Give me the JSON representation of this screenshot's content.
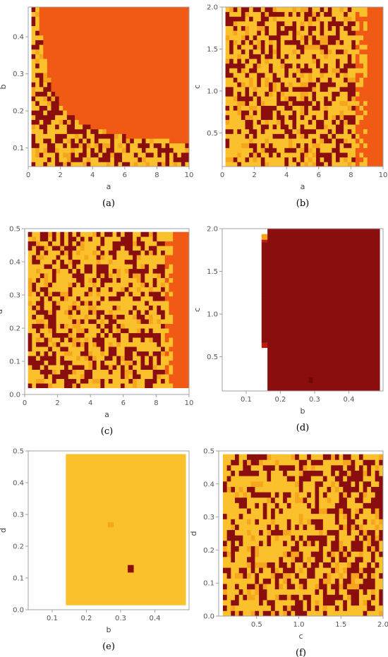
{
  "palette": {
    "dark_red": "#8a0e0e",
    "red": "#b81c12",
    "orange": "#f05a14",
    "amber": "#f6a51e",
    "yellow": "#fac12c"
  },
  "chart_data": [
    {
      "type": "heatmap",
      "caption": "(a)",
      "xlabel": "a",
      "ylabel": "b",
      "xlim": [
        0,
        10
      ],
      "ylim": [
        0.05,
        0.48
      ],
      "xticks": [
        "0",
        "2",
        "4",
        "6",
        "8",
        "10"
      ],
      "yticks": [
        "0.1",
        "0.2",
        "0.3",
        "0.4"
      ],
      "data_extent": {
        "x": [
          0.2,
          10
        ],
        "y": [
          0.05,
          0.48
        ]
      },
      "pattern": "mixed region (dark red / amber / yellow) for small a or small b; uniform orange region above the curve b ≈ 0.09 + 0.26/a (roughly), reaching b = 0.48 at a ≈ 1.2 and b ≈ 0.11 at a = 10"
    },
    {
      "type": "heatmap",
      "caption": "(b)",
      "xlabel": "a",
      "ylabel": "c",
      "xlim": [
        0,
        10
      ],
      "ylim": [
        0.1,
        2.0
      ],
      "xticks": [
        "0",
        "2",
        "4",
        "6",
        "8",
        "10"
      ],
      "yticks": [
        "0.5",
        "1.0",
        "1.5",
        "2.0"
      ],
      "data_extent": {
        "x": [
          0.2,
          10
        ],
        "y": [
          0.1,
          2.0
        ]
      },
      "pattern": "mixed dark red / amber / yellow for a < 8.5; uniform orange band for a > 9"
    },
    {
      "type": "heatmap",
      "caption": "(c)",
      "xlabel": "a",
      "ylabel": "d",
      "xlim": [
        0,
        10
      ],
      "ylim": [
        0,
        0.5
      ],
      "xticks": [
        "0",
        "2",
        "4",
        "6",
        "8",
        "10"
      ],
      "yticks": [
        "0.0",
        "0.1",
        "0.2",
        "0.3",
        "0.4",
        "0.5"
      ],
      "data_extent": {
        "x": [
          0.2,
          10
        ],
        "y": [
          0.02,
          0.49
        ]
      },
      "pattern": "mixed dark red / amber / yellow for a < 9; uniform orange band for a > 9"
    },
    {
      "type": "heatmap",
      "caption": "(d)",
      "xlabel": "b",
      "ylabel": "c",
      "xlim": [
        0.03,
        0.5
      ],
      "ylim": [
        0.1,
        2.0
      ],
      "xticks": [
        "0.1",
        "0.2",
        "0.3",
        "0.4"
      ],
      "yticks": [
        "0.5",
        "1.0",
        "1.5",
        "2.0"
      ],
      "data_extent": {
        "x": [
          0.145,
          0.49
        ],
        "y": [
          0.1,
          2.0
        ]
      },
      "pattern": "uniform dark red for b > 0.16 (and 0.145 < b < 0.16 when 0.62 < c < 1.85); empty (white) for smaller b; a few red cells near b ≈ 0.14, c ≈ 1.85 and an isolated darker cell at b ≈ 0.29, c ≈ 0.22"
    },
    {
      "type": "heatmap",
      "caption": "(e)",
      "xlabel": "b",
      "ylabel": "d",
      "xlim": [
        0.03,
        0.5
      ],
      "ylim": [
        0,
        0.5
      ],
      "xticks": [
        "0.1",
        "0.2",
        "0.3",
        "0.4"
      ],
      "yticks": [
        "0.0",
        "0.1",
        "0.2",
        "0.3",
        "0.4",
        "0.5"
      ],
      "data_extent": {
        "x": [
          0.14,
          0.49
        ],
        "y": [
          0.015,
          0.49
        ]
      },
      "pattern": "uniform yellow for b > 0.14; empty (white) for smaller b; a single dark red cell at b ≈ 0.33, d ≈ 0.13 and a lighter amber cell at b ≈ 0.27, d ≈ 0.27"
    },
    {
      "type": "heatmap",
      "caption": "(f)",
      "xlabel": "c",
      "ylabel": "d",
      "xlim": [
        0.05,
        2.0
      ],
      "ylim": [
        0,
        0.5
      ],
      "xticks": [
        "0.5",
        "1.0",
        "1.5",
        "2.0"
      ],
      "yticks": [
        "0.0",
        "0.1",
        "0.2",
        "0.3",
        "0.4",
        "0.5"
      ],
      "data_extent": {
        "x": [
          0.1,
          2.0
        ],
        "y": [
          0.0,
          0.49
        ]
      },
      "pattern": "mixed dark red / amber / yellow across the whole domain, denser dark red at larger c"
    }
  ]
}
